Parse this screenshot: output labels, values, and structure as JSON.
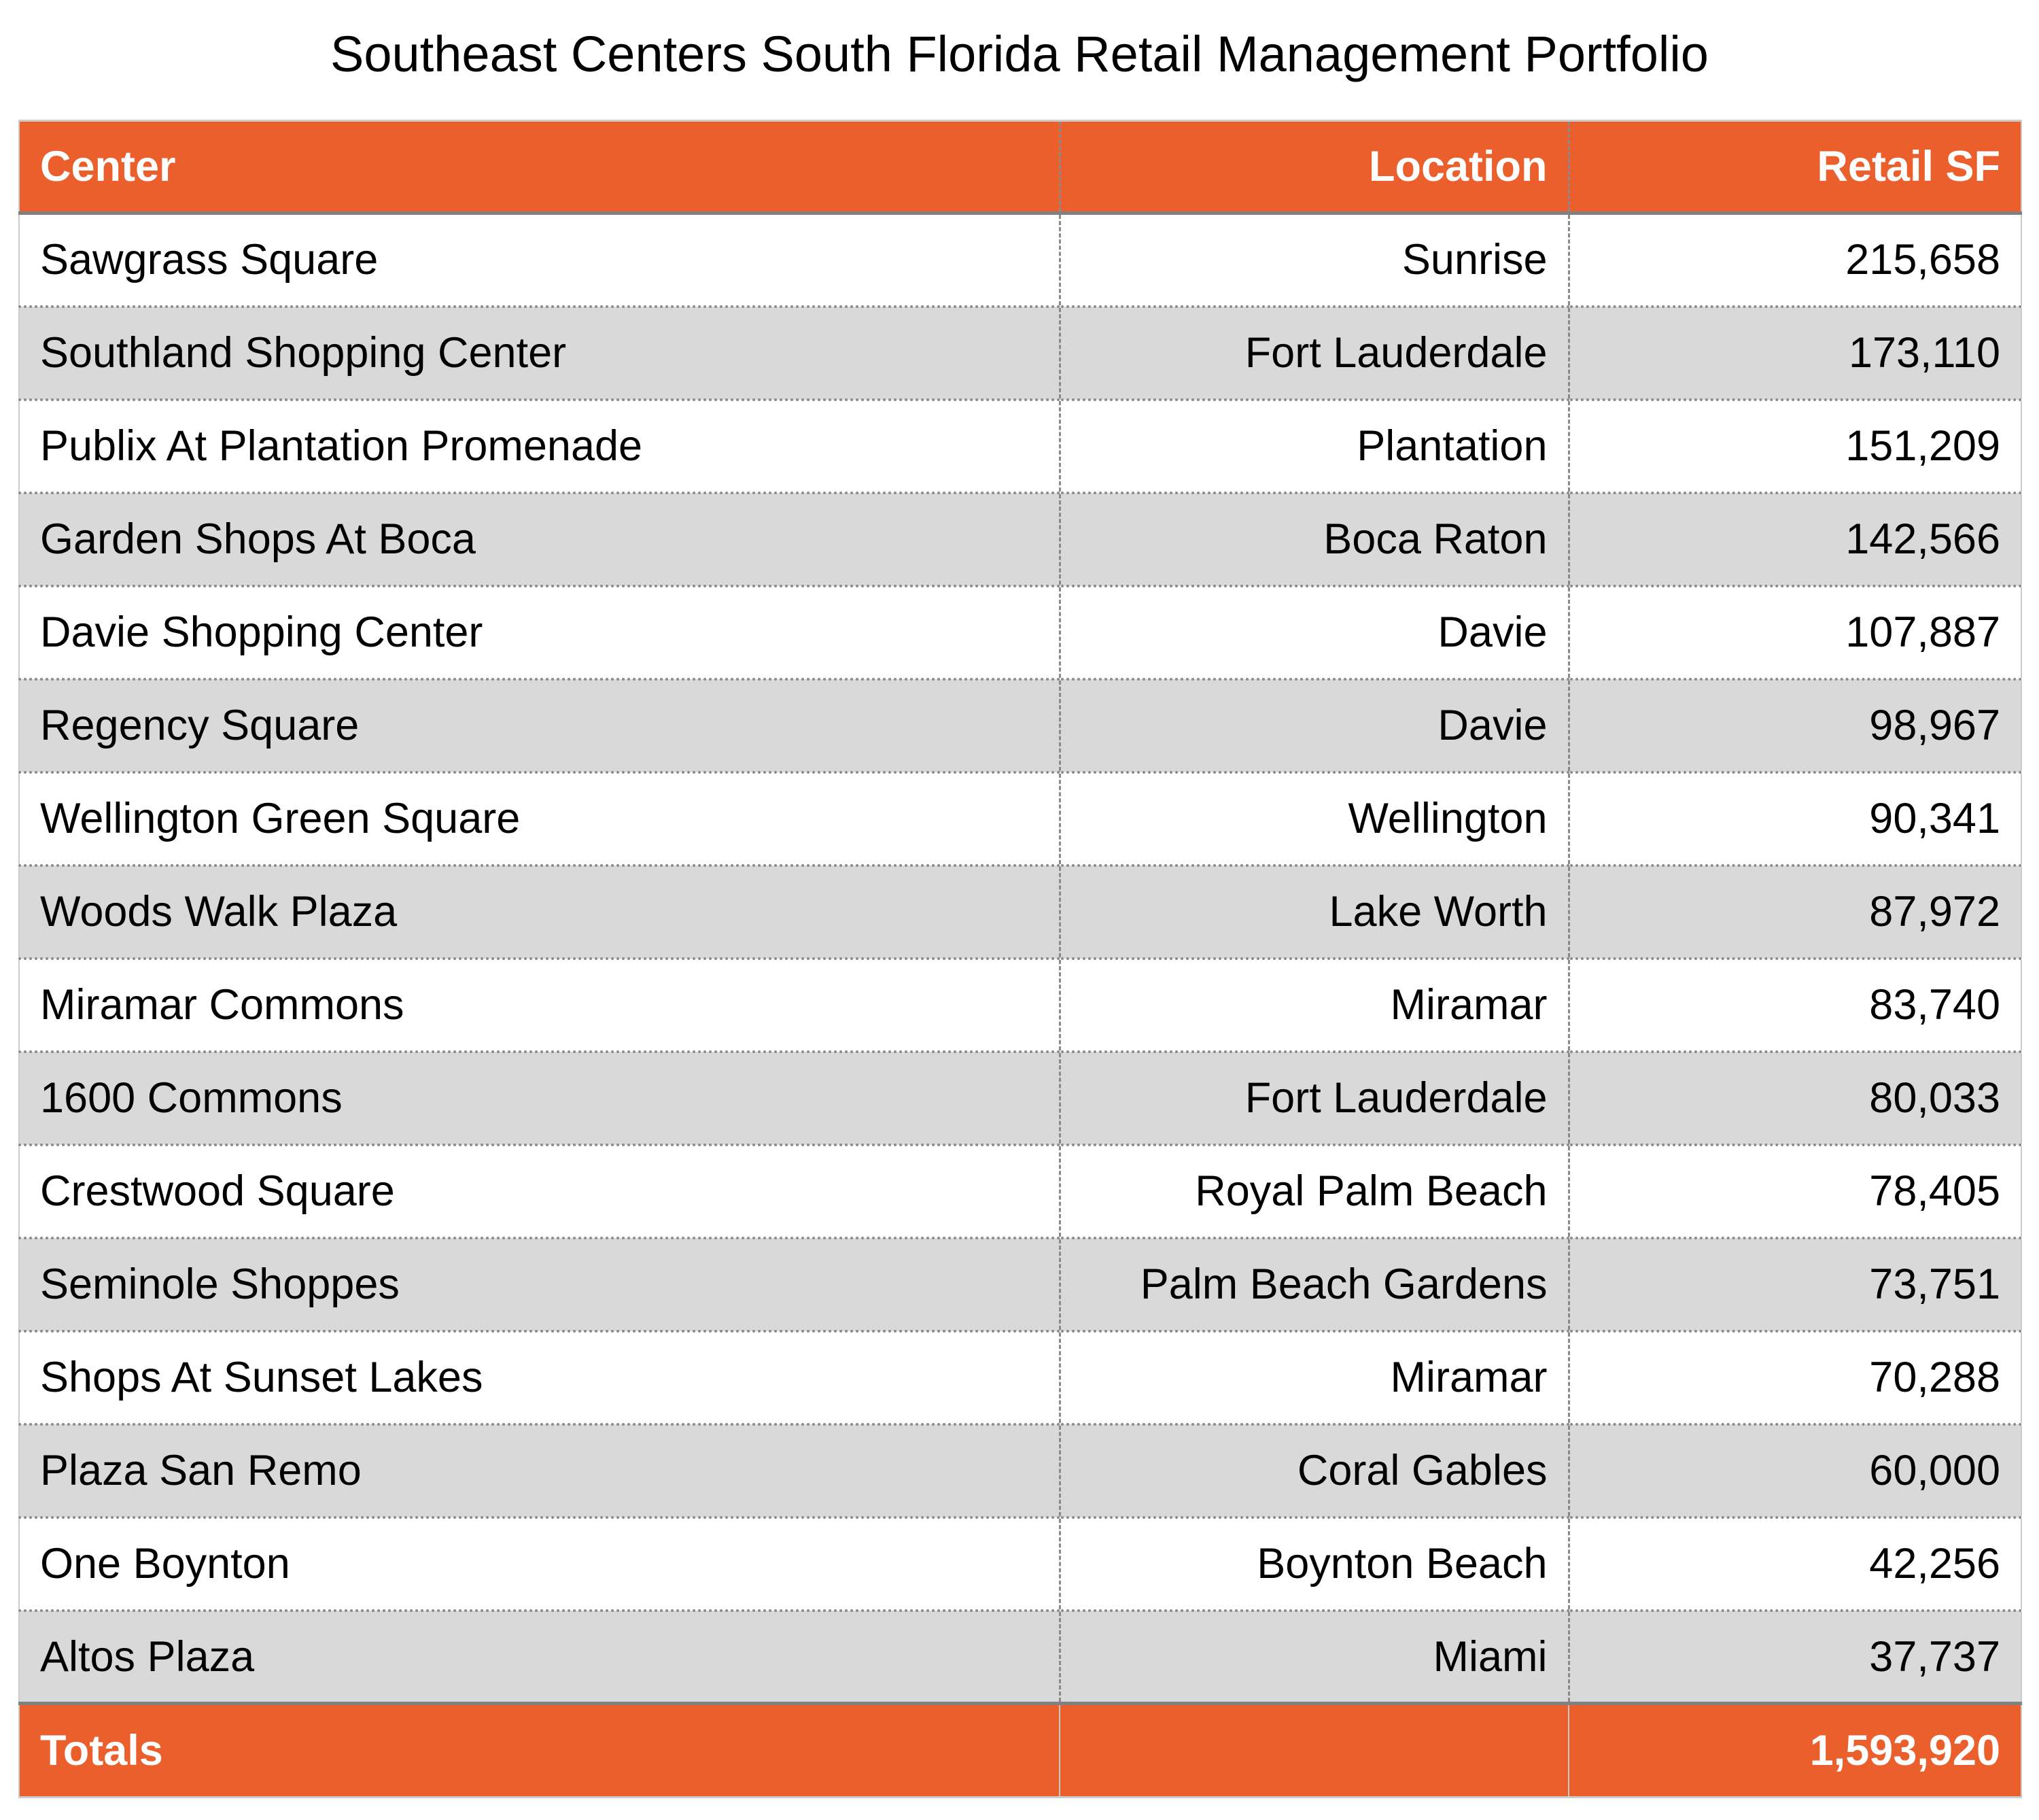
{
  "title": "Southeast Centers South Florida Retail Management Portfolio",
  "colors": {
    "header": "#EB5F2D",
    "stripe": "#D9D9D9"
  },
  "columns": [
    "Center",
    "Location",
    "Retail SF"
  ],
  "rows": [
    [
      "Sawgrass Square",
      "Sunrise",
      "215,658"
    ],
    [
      "Southland Shopping Center",
      "Fort Lauderdale",
      "173,110"
    ],
    [
      "Publix At Plantation Promenade",
      "Plantation",
      "151,209"
    ],
    [
      "Garden Shops At Boca",
      "Boca Raton",
      "142,566"
    ],
    [
      "Davie Shopping Center",
      "Davie",
      "107,887"
    ],
    [
      "Regency Square",
      "Davie",
      "98,967"
    ],
    [
      "Wellington Green Square",
      "Wellington",
      "90,341"
    ],
    [
      "Woods Walk Plaza",
      "Lake Worth",
      "87,972"
    ],
    [
      "Miramar Commons",
      "Miramar",
      "83,740"
    ],
    [
      "1600 Commons",
      "Fort Lauderdale",
      "80,033"
    ],
    [
      "Crestwood Square",
      "Royal Palm Beach",
      "78,405"
    ],
    [
      "Seminole Shoppes",
      "Palm Beach Gardens",
      "73,751"
    ],
    [
      "Shops At Sunset Lakes",
      "Miramar",
      "70,288"
    ],
    [
      "Plaza San Remo",
      "Coral Gables",
      "60,000"
    ],
    [
      "One Boynton",
      "Boynton Beach",
      "42,256"
    ],
    [
      "Altos Plaza",
      "Miami",
      "37,737"
    ]
  ],
  "totals": {
    "label": "Totals",
    "location": "",
    "retail_sf": "1,593,920"
  }
}
